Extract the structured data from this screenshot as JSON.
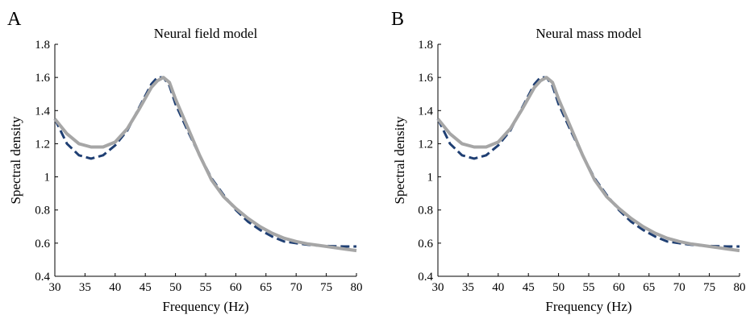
{
  "chart_data": [
    {
      "type": "line",
      "panel_label": "A",
      "title": "Neural field model",
      "xlabel": "Frequency (Hz)",
      "ylabel": "Spectral density",
      "xlim": [
        30,
        80
      ],
      "ylim": [
        0.4,
        1.8
      ],
      "xticks": [
        30,
        35,
        40,
        45,
        50,
        55,
        60,
        65,
        70,
        75,
        80
      ],
      "yticks": [
        0.4,
        0.6,
        0.8,
        1,
        1.2,
        1.4,
        1.6,
        1.8
      ],
      "grid": false,
      "series": [
        {
          "style": "dashed",
          "color": "#1f3f73",
          "x": [
            30,
            32,
            34,
            36,
            38,
            40,
            42,
            44,
            46,
            47,
            48,
            49,
            50,
            52,
            54,
            56,
            58,
            60,
            62,
            64,
            66,
            68,
            70,
            72,
            74,
            76,
            78,
            80
          ],
          "y": [
            1.35,
            1.2,
            1.13,
            1.11,
            1.13,
            1.19,
            1.28,
            1.42,
            1.56,
            1.6,
            1.6,
            1.55,
            1.44,
            1.28,
            1.13,
            0.99,
            0.89,
            0.8,
            0.73,
            0.68,
            0.64,
            0.61,
            0.6,
            0.59,
            0.585,
            0.582,
            0.58,
            0.58
          ]
        },
        {
          "style": "solid",
          "color": "#a6a6a6",
          "x": [
            30,
            32,
            34,
            36,
            38,
            40,
            42,
            44,
            46,
            47,
            48,
            49,
            50,
            52,
            54,
            56,
            58,
            60,
            62,
            64,
            66,
            68,
            70,
            72,
            74,
            76,
            78,
            80
          ],
          "y": [
            1.35,
            1.26,
            1.2,
            1.18,
            1.18,
            1.21,
            1.29,
            1.41,
            1.54,
            1.58,
            1.6,
            1.57,
            1.47,
            1.3,
            1.13,
            0.98,
            0.88,
            0.81,
            0.75,
            0.7,
            0.66,
            0.63,
            0.61,
            0.595,
            0.585,
            0.575,
            0.565,
            0.555
          ]
        }
      ]
    },
    {
      "type": "line",
      "panel_label": "B",
      "title": "Neural mass model",
      "xlabel": "Frequency (Hz)",
      "ylabel": "Spectral density",
      "xlim": [
        30,
        80
      ],
      "ylim": [
        0.4,
        1.8
      ],
      "xticks": [
        30,
        35,
        40,
        45,
        50,
        55,
        60,
        65,
        70,
        75,
        80
      ],
      "yticks": [
        0.4,
        0.6,
        0.8,
        1,
        1.2,
        1.4,
        1.6,
        1.8
      ],
      "grid": false,
      "series": [
        {
          "style": "dashed",
          "color": "#1f3f73",
          "x": [
            30,
            32,
            34,
            36,
            38,
            40,
            42,
            44,
            46,
            47,
            48,
            49,
            50,
            52,
            54,
            56,
            58,
            60,
            62,
            64,
            66,
            68,
            70,
            72,
            74,
            76,
            78,
            80
          ],
          "y": [
            1.35,
            1.2,
            1.13,
            1.11,
            1.13,
            1.19,
            1.28,
            1.42,
            1.56,
            1.6,
            1.6,
            1.55,
            1.44,
            1.28,
            1.13,
            0.99,
            0.89,
            0.8,
            0.73,
            0.68,
            0.64,
            0.61,
            0.6,
            0.59,
            0.585,
            0.582,
            0.58,
            0.58
          ]
        },
        {
          "style": "solid",
          "color": "#a6a6a6",
          "x": [
            30,
            32,
            34,
            36,
            38,
            40,
            42,
            44,
            46,
            47,
            48,
            49,
            50,
            52,
            54,
            56,
            58,
            60,
            62,
            64,
            66,
            68,
            70,
            72,
            74,
            76,
            78,
            80
          ],
          "y": [
            1.35,
            1.26,
            1.2,
            1.18,
            1.18,
            1.21,
            1.29,
            1.41,
            1.54,
            1.58,
            1.6,
            1.57,
            1.47,
            1.3,
            1.13,
            0.98,
            0.88,
            0.81,
            0.75,
            0.7,
            0.66,
            0.63,
            0.61,
            0.595,
            0.585,
            0.575,
            0.565,
            0.555
          ]
        }
      ]
    }
  ]
}
